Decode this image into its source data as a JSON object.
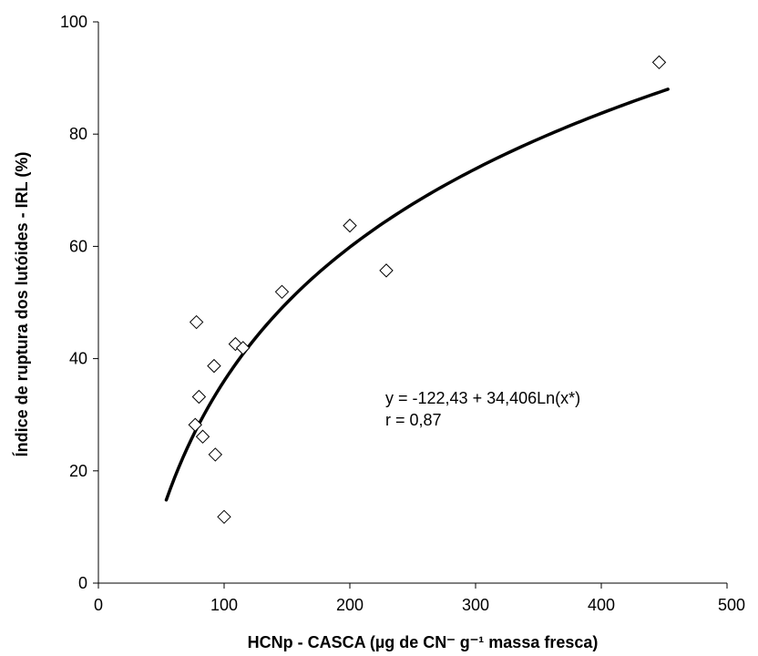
{
  "chart_data": {
    "type": "scatter",
    "xlabel": "HCNp - CASCA (µg de CN⁻ g⁻¹ massa fresca)",
    "ylabel": "Índice de ruptura dos lutóides - IRL (%)",
    "xlim": [
      0,
      500
    ],
    "ylim": [
      0,
      100
    ],
    "x_ticks": [
      "0",
      "100",
      "200",
      "300",
      "400",
      "500"
    ],
    "y_ticks": [
      "0",
      "20",
      "40",
      "60",
      "80",
      "100"
    ],
    "grid": false,
    "legend": "none",
    "marker": "open-diamond",
    "points": [
      {
        "x": 78,
        "y": 46.5
      },
      {
        "x": 80,
        "y": 33.2
      },
      {
        "x": 77,
        "y": 28.2
      },
      {
        "x": 83,
        "y": 26.1
      },
      {
        "x": 92,
        "y": 38.7
      },
      {
        "x": 93,
        "y": 22.9
      },
      {
        "x": 100,
        "y": 11.8
      },
      {
        "x": 109,
        "y": 42.6
      },
      {
        "x": 115,
        "y": 41.9
      },
      {
        "x": 146,
        "y": 51.9
      },
      {
        "x": 200,
        "y": 63.7
      },
      {
        "x": 229,
        "y": 55.7
      },
      {
        "x": 446,
        "y": 92.8
      }
    ],
    "trendline": {
      "type": "log",
      "intercept": -122.43,
      "slope": 34.406,
      "x_range": [
        54,
        453
      ],
      "color": "#000000"
    },
    "annotations": [
      "y = -122,43 + 34,406Ln(x*)",
      "r = 0,87"
    ]
  }
}
